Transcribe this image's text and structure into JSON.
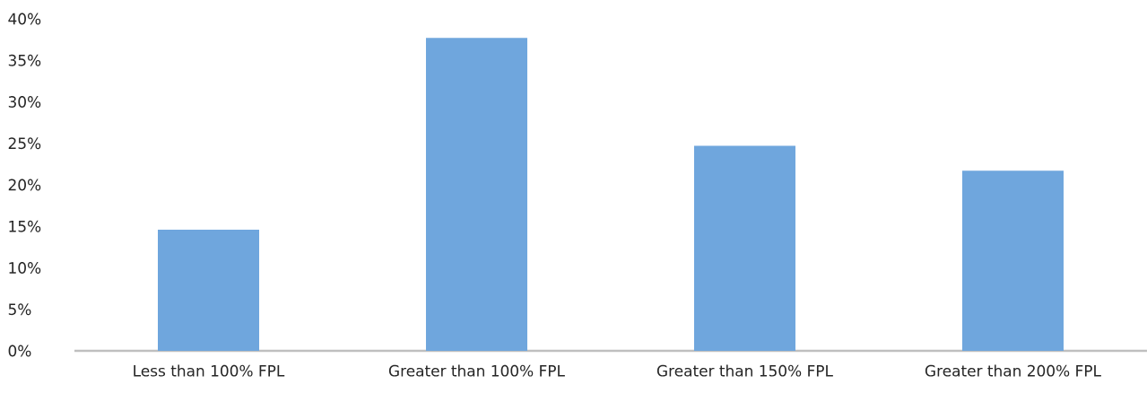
{
  "chart_data": {
    "type": "bar",
    "categories": [
      "Less than 100% FPL",
      "Greater than 100% FPL",
      "Greater than 150% FPL",
      "Greater than 200% FPL"
    ],
    "values": [
      14.6,
      37.7,
      24.7,
      21.7
    ],
    "color": "#6fa6dd",
    "ylim": [
      0,
      40
    ],
    "yticks": [
      {
        "value": 0,
        "label": "0%"
      },
      {
        "value": 5,
        "label": "5%"
      },
      {
        "value": 10,
        "label": "10%"
      },
      {
        "value": 15,
        "label": "15%"
      },
      {
        "value": 20,
        "label": "20%"
      },
      {
        "value": 25,
        "label": "25%"
      },
      {
        "value": 30,
        "label": "30%"
      },
      {
        "value": 35,
        "label": "35%"
      },
      {
        "value": 40,
        "label": "40%"
      }
    ]
  }
}
